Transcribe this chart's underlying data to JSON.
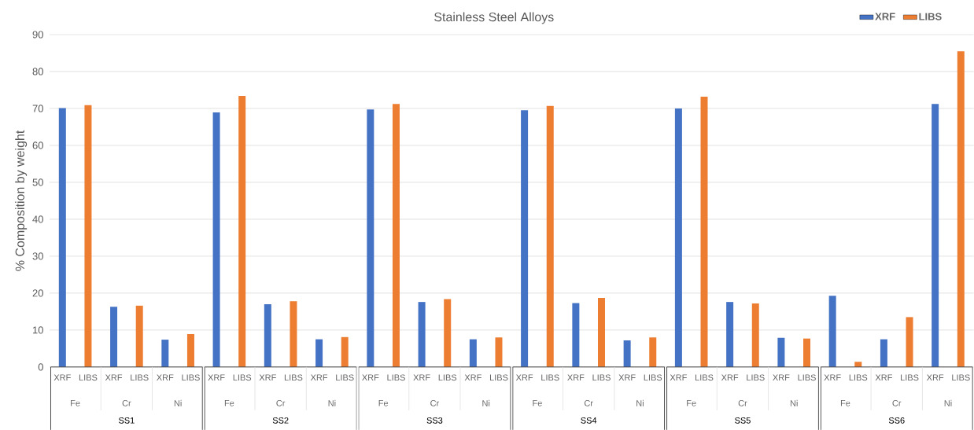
{
  "chart_data": {
    "type": "bar",
    "title": "Stainless Steel Alloys",
    "ylabel": "% Composition by weight",
    "categories": [
      "XRF",
      "LIBS",
      "XRF",
      "LIBS",
      "XRF",
      "LIBS",
      "XRF",
      "LIBS",
      "XRF",
      "LIBS",
      "XRF",
      "LIBS",
      "XRF",
      "LIBS",
      "XRF",
      "LIBS",
      "XRF",
      "LIBS",
      "XRF",
      "LIBS",
      "XRF",
      "LIBS",
      "XRF",
      "LIBS",
      "XRF",
      "LIBS",
      "XRF",
      "LIBS",
      "XRF",
      "LIBS",
      "XRF",
      "LIBS",
      "XRF",
      "LIBS",
      "XRF",
      "LIBS"
    ],
    "series": [
      {
        "name": "XRF",
        "color": "#4472c4",
        "values": [
          70.1,
          null,
          16.3,
          null,
          7.4,
          null,
          68.9,
          null,
          17.0,
          null,
          7.5,
          null,
          69.7,
          null,
          17.6,
          null,
          7.5,
          null,
          69.5,
          null,
          17.3,
          null,
          7.2,
          null,
          70.0,
          null,
          17.6,
          null,
          7.9,
          null,
          19.3,
          null,
          7.5,
          null,
          71.2,
          null
        ]
      },
      {
        "name": "LIBS",
        "color": "#ed7d31",
        "values": [
          null,
          70.9,
          null,
          16.6,
          null,
          8.9,
          null,
          73.4,
          null,
          17.8,
          null,
          8.1,
          null,
          71.2,
          null,
          18.4,
          null,
          8.0,
          null,
          70.7,
          null,
          18.7,
          null,
          8.0,
          null,
          73.2,
          null,
          17.2,
          null,
          7.7,
          null,
          1.4,
          null,
          13.5,
          null,
          85.5
        ]
      }
    ],
    "ylim": [
      0,
      90
    ],
    "yticks": [
      0,
      10,
      20,
      30,
      40,
      50,
      60,
      70,
      80,
      90
    ],
    "grid": "y",
    "legend": "top right",
    "annotations": [
      "Fe",
      "Cr",
      "Ni",
      "SS1",
      "Fe",
      "Cr",
      "Ni",
      "SS2",
      "Fe",
      "Cr",
      "Ni",
      "SS3",
      "Fe",
      "Cr",
      "Ni",
      "SS4",
      "Fe",
      "Cr",
      "Ni",
      "SS5",
      "Fe",
      "Cr",
      "Ni",
      "SS6"
    ]
  }
}
